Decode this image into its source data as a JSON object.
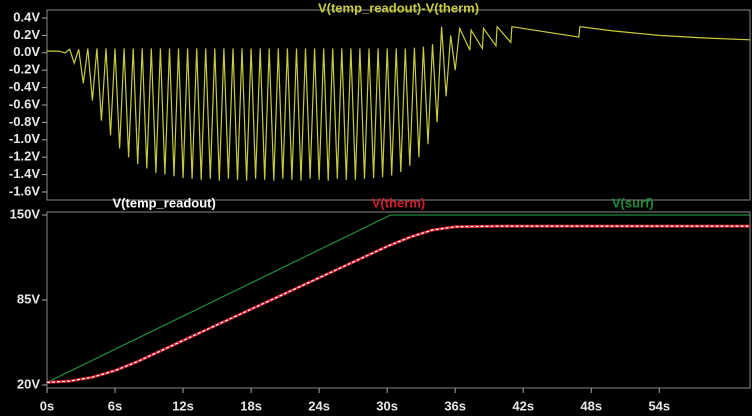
{
  "chart_data": [
    {
      "type": "line",
      "xlim": [
        0,
        62
      ],
      "ylim": [
        -1.6,
        0.4
      ],
      "yticks": [
        {
          "value": 0.4,
          "label": "0.4V"
        },
        {
          "value": 0.2,
          "label": "0.2V"
        },
        {
          "value": 0.0,
          "label": "0.0V"
        },
        {
          "value": -0.2,
          "label": "-0.2V"
        },
        {
          "value": -0.4,
          "label": "-0.4V"
        },
        {
          "value": -0.6,
          "label": "-0.6V"
        },
        {
          "value": -0.8,
          "label": "-0.8V"
        },
        {
          "value": -1.0,
          "label": "-1.0V"
        },
        {
          "value": -1.2,
          "label": "-1.2V"
        },
        {
          "value": -1.4,
          "label": "-1.4V"
        },
        {
          "value": -1.6,
          "label": "-1.6V"
        }
      ],
      "series": [
        {
          "name": "V(temp_readout)-V(therm)",
          "color": "#c8cc3c",
          "x": [
            0,
            1,
            1.6,
            2.0,
            2.4,
            2.8,
            3.2,
            3.6,
            4.0,
            4.4,
            4.8,
            5.2,
            5.6,
            6.0,
            6.4,
            6.8,
            7.2,
            7.6,
            8.0,
            8.4,
            8.8,
            9.2,
            9.6,
            10.0,
            10.4,
            10.8,
            11.2,
            11.6,
            12.0,
            12.4,
            12.8,
            13.2,
            13.6,
            14.0,
            14.4,
            14.8,
            15.2,
            15.6,
            16.0,
            16.4,
            16.8,
            17.2,
            17.6,
            18.0,
            18.4,
            18.8,
            19.2,
            19.6,
            20.0,
            20.4,
            20.8,
            21.2,
            21.6,
            22.0,
            22.4,
            22.8,
            23.2,
            23.6,
            24.0,
            24.4,
            24.8,
            25.2,
            25.6,
            26.0,
            26.4,
            26.8,
            27.2,
            27.6,
            28.0,
            28.4,
            28.8,
            29.2,
            29.6,
            30.0,
            30.4,
            30.8,
            31.2,
            31.6,
            32.0,
            32.4,
            32.8,
            33.2,
            33.6,
            34.0,
            34.4,
            34.8,
            35.2,
            35.6,
            36.0,
            36.4,
            37.3,
            37.4,
            38.4,
            38.5,
            39.6,
            39.7,
            40.9,
            41.0,
            46.9,
            47.0,
            50,
            54,
            58,
            62
          ],
          "values": [
            0.02,
            0.02,
            0.0,
            0.04,
            -0.12,
            0.04,
            -0.35,
            0.05,
            -0.55,
            0.05,
            -0.78,
            0.05,
            -0.95,
            0.05,
            -1.1,
            0.05,
            -1.2,
            0.05,
            -1.28,
            0.05,
            -1.33,
            0.05,
            -1.38,
            0.05,
            -1.4,
            0.05,
            -1.42,
            0.05,
            -1.44,
            0.05,
            -1.45,
            0.05,
            -1.46,
            0.05,
            -1.45,
            0.05,
            -1.47,
            0.05,
            -1.45,
            0.05,
            -1.46,
            0.05,
            -1.47,
            0.05,
            -1.45,
            0.05,
            -1.46,
            0.05,
            -1.47,
            0.05,
            -1.45,
            0.05,
            -1.46,
            0.05,
            -1.47,
            0.05,
            -1.45,
            0.05,
            -1.46,
            0.05,
            -1.47,
            0.05,
            -1.45,
            0.05,
            -1.46,
            0.05,
            -1.46,
            0.05,
            -1.45,
            0.05,
            -1.44,
            0.05,
            -1.43,
            0.05,
            -1.41,
            0.05,
            -1.37,
            0.05,
            -1.3,
            0.06,
            -1.2,
            0.07,
            -1.05,
            0.1,
            -0.8,
            0.3,
            -0.5,
            0.2,
            -0.2,
            0.28,
            0.03,
            0.26,
            0.05,
            0.28,
            0.08,
            0.3,
            0.12,
            0.3,
            0.18,
            0.3,
            0.25,
            0.2,
            0.17,
            0.15
          ]
        }
      ]
    },
    {
      "type": "line",
      "xlim": [
        0,
        62
      ],
      "ylim": [
        20,
        150
      ],
      "yticks": [
        {
          "value": 150,
          "label": "150V"
        },
        {
          "value": 85,
          "label": "85V"
        },
        {
          "value": 20,
          "label": "20V"
        }
      ],
      "xticks": [
        {
          "value": 0,
          "label": "0s"
        },
        {
          "value": 6,
          "label": "6s"
        },
        {
          "value": 12,
          "label": "12s"
        },
        {
          "value": 18,
          "label": "18s"
        },
        {
          "value": 24,
          "label": "24s"
        },
        {
          "value": 30,
          "label": "30s"
        },
        {
          "value": 36,
          "label": "36s"
        },
        {
          "value": 42,
          "label": "42s"
        },
        {
          "value": 48,
          "label": "48s"
        },
        {
          "value": 54,
          "label": "54s"
        }
      ],
      "series": [
        {
          "name": "V(temp_readout)",
          "color": "#ffffff",
          "x": [
            0,
            2,
            4,
            6,
            8,
            10,
            12,
            15,
            18,
            21,
            24,
            27,
            30,
            32,
            34,
            36,
            40,
            62
          ],
          "values": [
            22,
            23,
            26,
            31,
            38,
            46,
            54,
            66,
            78,
            90,
            102,
            114,
            126,
            133,
            138.5,
            141,
            141.5,
            141.5
          ]
        },
        {
          "name": "V(therm)",
          "color": "#d01c2c",
          "x": [
            0,
            2,
            4,
            6,
            8,
            10,
            12,
            15,
            18,
            21,
            24,
            27,
            30,
            32,
            34,
            36,
            40,
            62
          ],
          "values": [
            22,
            23,
            26,
            31,
            38,
            46,
            54,
            66,
            78,
            90,
            102,
            114,
            126,
            133,
            138.5,
            141,
            141.5,
            141.5
          ]
        },
        {
          "name": "V(surf)",
          "color": "#1e8c3c",
          "x": [
            0,
            30.3,
            62
          ],
          "values": [
            22,
            150,
            150
          ]
        }
      ]
    }
  ]
}
